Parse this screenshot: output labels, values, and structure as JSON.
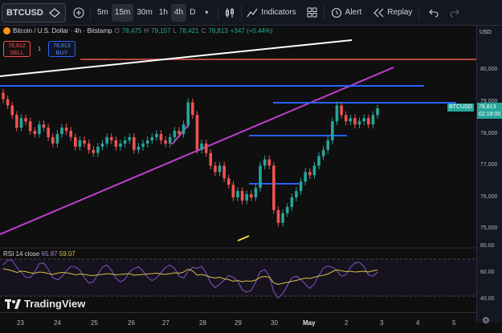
{
  "toolbar": {
    "symbol": "BTCUSD",
    "timeframes": [
      "5m",
      "15m",
      "30m",
      "1h",
      "4h",
      "D"
    ],
    "active_timeframe": "4h",
    "indicators_label": "Indicators",
    "alert_label": "Alert",
    "replay_label": "Replay"
  },
  "legend": {
    "title": "Bitcoin / U.S. Dollar · 4h · Bitstamp",
    "o_label": "O",
    "o_value": "78,475",
    "h_label": "H",
    "h_value": "79,157",
    "l_label": "L",
    "l_value": "78,421",
    "c_label": "C",
    "c_value": "78,813",
    "change": "+347 (+0.44%)"
  },
  "order": {
    "sell_price": "78,812",
    "sell_label": "SELL",
    "quantity": "1",
    "buy_price": "78,813",
    "buy_label": "BUY"
  },
  "price_axis": {
    "currency": "USD",
    "labels": [
      "80,000",
      "79,000",
      "78,000",
      "77,000",
      "76,000",
      "75,000",
      "80.00",
      "60.00",
      "40.00"
    ],
    "symbol_tag": "BTCUSD",
    "current_price": "78,813",
    "countdown": "02:18:00"
  },
  "rsi": {
    "name": "RSI 14 close",
    "value1": "65.87",
    "value2": "59.07"
  },
  "branding": {
    "logo_text": "TradingView"
  },
  "time_axis": {
    "labels": [
      "23",
      "24",
      "25",
      "26",
      "27",
      "28",
      "29",
      "30",
      "May",
      "2",
      "3",
      "4",
      "5"
    ]
  },
  "colors": {
    "up": "#26a69a",
    "down": "#ef5350",
    "trend_purple": "#c03fd0",
    "blue_levels": "#2962ff",
    "rsi_line": "#7e57c2",
    "rsi_ma": "#d8c04a"
  }
}
